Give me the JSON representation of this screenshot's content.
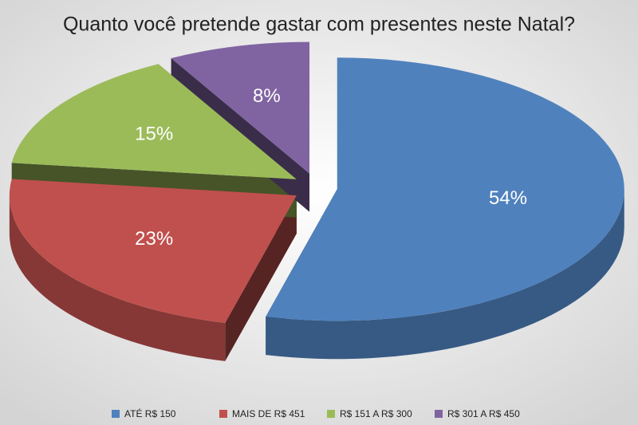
{
  "chart_data": {
    "type": "pie",
    "title": "Quanto você pretende gastar com presentes neste Natal?",
    "categories": [
      "ATÉ R$ 150",
      "MAIS DE R$ 451",
      "R$ 151 A R$ 300",
      "R$ 301 A R$ 450"
    ],
    "values": [
      54,
      23,
      15,
      8
    ],
    "value_labels": [
      "54%",
      "23%",
      "15%",
      "8%"
    ],
    "colors": [
      "#4f81bd",
      "#c0504d",
      "#9bbb59",
      "#8064a2"
    ],
    "legend": "bottom"
  }
}
